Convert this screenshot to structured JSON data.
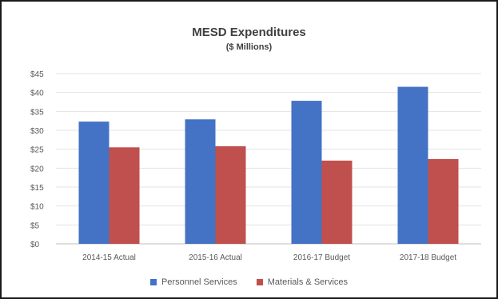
{
  "chart_data": {
    "type": "bar",
    "title": "MESD Expenditures",
    "subtitle": "($ Millions)",
    "xlabel": "",
    "ylabel": "",
    "categories": [
      "2014-15 Actual",
      "2015-16 Actual",
      "2016-17 Budget",
      "2017-18 Budget"
    ],
    "series": [
      {
        "name": "Personnel Services",
        "values": [
          32.3,
          32.9,
          37.8,
          41.5
        ],
        "color": "#4472C4"
      },
      {
        "name": "Materials & Services",
        "values": [
          25.5,
          25.8,
          22.0,
          22.4
        ],
        "color": "#C0504D"
      }
    ],
    "ylim": [
      0,
      45
    ],
    "yticks": [
      "$0",
      "$5",
      "$10",
      "$15",
      "$20",
      "$25",
      "$30",
      "$35",
      "$40",
      "$45"
    ],
    "grid": true,
    "legend_position": "bottom"
  }
}
